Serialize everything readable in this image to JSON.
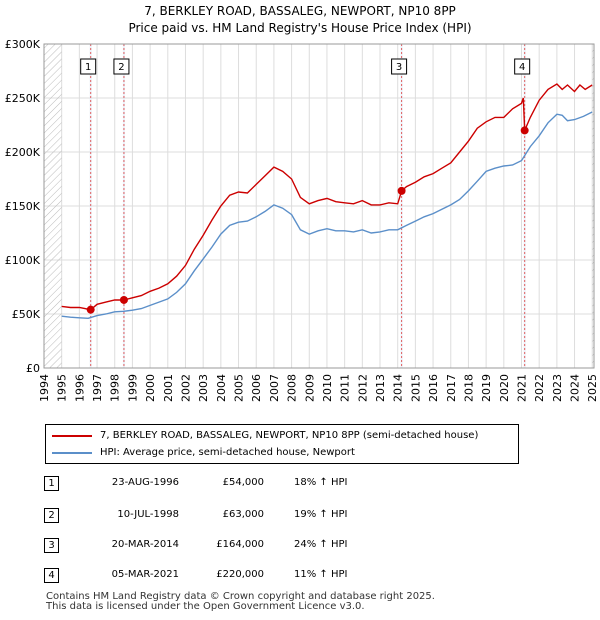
{
  "title_line1": "7, BERKLEY ROAD, BASSALEG, NEWPORT, NP10 8PP",
  "title_line2": "Price paid vs. HM Land Registry's House Price Index (HPI)",
  "chart_data": {
    "type": "line",
    "xlim": [
      1994.0,
      2025.1
    ],
    "ylim": [
      0,
      300000
    ],
    "y_ticks": [
      0,
      50000,
      100000,
      150000,
      200000,
      250000,
      300000
    ],
    "y_tick_labels": [
      "£0",
      "£50K",
      "£100K",
      "£150K",
      "£200K",
      "£250K",
      "£300K"
    ],
    "x_ticks": [
      1994,
      1995,
      1996,
      1997,
      1998,
      1999,
      2000,
      2001,
      2002,
      2003,
      2004,
      2005,
      2006,
      2007,
      2008,
      2009,
      2010,
      2011,
      2012,
      2013,
      2014,
      2015,
      2016,
      2017,
      2018,
      2019,
      2020,
      2021,
      2022,
      2023,
      2024,
      2025
    ],
    "hatch_ranges": [
      [
        1994.0,
        1995.0
      ],
      [
        2025.0,
        2025.1
      ]
    ],
    "colors": {
      "property": "#cc0000",
      "hpi": "#5b8fc9",
      "sale_line": "#e06060",
      "shade": "#dde6f4"
    },
    "series": [
      {
        "name": "7, BERKLEY ROAD, BASSALEG, NEWPORT, NP10 8PP (semi-detached house)",
        "x": [
          1995.0,
          1995.5,
          1996.0,
          1996.64,
          1997.0,
          1997.5,
          1998.0,
          1998.52,
          1999.0,
          1999.5,
          2000.0,
          2000.5,
          2001.0,
          2001.5,
          2002.0,
          2002.5,
          2003.0,
          2003.5,
          2004.0,
          2004.5,
          2005.0,
          2005.5,
          2006.0,
          2006.5,
          2007.0,
          2007.5,
          2008.0,
          2008.5,
          2009.0,
          2009.5,
          2010.0,
          2010.5,
          2011.0,
          2011.5,
          2012.0,
          2012.5,
          2013.0,
          2013.5,
          2014.0,
          2014.22,
          2014.5,
          2015.0,
          2015.5,
          2016.0,
          2016.5,
          2017.0,
          2017.5,
          2018.0,
          2018.5,
          2019.0,
          2019.5,
          2020.0,
          2020.5,
          2021.0,
          2021.1,
          2021.18,
          2021.5,
          2022.0,
          2022.5,
          2023.0,
          2023.3,
          2023.6,
          2024.0,
          2024.3,
          2024.6,
          2025.0
        ],
        "values": [
          57000,
          56000,
          56000,
          54000,
          59000,
          61000,
          63000,
          63000,
          65000,
          67000,
          71000,
          74000,
          78000,
          85000,
          95000,
          110000,
          123000,
          137000,
          150000,
          160000,
          163000,
          162000,
          170000,
          178000,
          186000,
          182000,
          175000,
          158000,
          152000,
          155000,
          157000,
          154000,
          153000,
          152000,
          155000,
          151000,
          151000,
          153000,
          152000,
          164000,
          168000,
          172000,
          177000,
          180000,
          185000,
          190000,
          200000,
          210000,
          222000,
          228000,
          232000,
          232000,
          240000,
          245000,
          250000,
          220000,
          232000,
          248000,
          258000,
          263000,
          258000,
          262000,
          256000,
          262000,
          258000,
          262000
        ]
      },
      {
        "name": "HPI: Average price, semi-detached house, Newport",
        "x": [
          1995.0,
          1995.5,
          1996.0,
          1996.5,
          1997.0,
          1997.5,
          1998.0,
          1998.5,
          1999.0,
          1999.5,
          2000.0,
          2000.5,
          2001.0,
          2001.5,
          2002.0,
          2002.5,
          2003.0,
          2003.5,
          2004.0,
          2004.5,
          2005.0,
          2005.5,
          2006.0,
          2006.5,
          2007.0,
          2007.5,
          2008.0,
          2008.5,
          2009.0,
          2009.5,
          2010.0,
          2010.5,
          2011.0,
          2011.5,
          2012.0,
          2012.5,
          2013.0,
          2013.5,
          2014.0,
          2014.5,
          2015.0,
          2015.5,
          2016.0,
          2016.5,
          2017.0,
          2017.5,
          2018.0,
          2018.5,
          2019.0,
          2019.5,
          2020.0,
          2020.5,
          2021.0,
          2021.5,
          2022.0,
          2022.5,
          2023.0,
          2023.3,
          2023.6,
          2024.0,
          2024.5,
          2025.0
        ],
        "values": [
          48000,
          47000,
          46500,
          46000,
          48500,
          50000,
          52000,
          52500,
          53500,
          55000,
          58000,
          61000,
          64000,
          70000,
          78000,
          90000,
          101000,
          112000,
          124000,
          132000,
          135000,
          136000,
          140000,
          145000,
          151000,
          148000,
          142000,
          128000,
          124000,
          127000,
          129000,
          127000,
          127000,
          126000,
          128000,
          125000,
          126000,
          128000,
          128000,
          132000,
          136000,
          140000,
          143000,
          147000,
          151000,
          156000,
          164000,
          173000,
          182000,
          185000,
          187000,
          188000,
          192000,
          205000,
          215000,
          227000,
          235000,
          234000,
          229000,
          230000,
          233000,
          237000
        ]
      }
    ],
    "sales": [
      {
        "label": "1",
        "x": 1996.64,
        "value": 54000
      },
      {
        "label": "2",
        "x": 1998.52,
        "value": 63000
      },
      {
        "label": "3",
        "x": 2014.22,
        "value": 164000
      },
      {
        "label": "4",
        "x": 2021.18,
        "value": 220000
      }
    ]
  },
  "legend": {
    "property_label": "7, BERKLEY ROAD, BASSALEG, NEWPORT, NP10 8PP (semi-detached house)",
    "hpi_label": "HPI: Average price, semi-detached house, Newport"
  },
  "sales_table": [
    {
      "num": "1",
      "date": "23-AUG-1996",
      "price": "£54,000",
      "hpi": "18% ↑ HPI"
    },
    {
      "num": "2",
      "date": "10-JUL-1998",
      "price": "£63,000",
      "hpi": "19% ↑ HPI"
    },
    {
      "num": "3",
      "date": "20-MAR-2014",
      "price": "£164,000",
      "hpi": "24% ↑ HPI"
    },
    {
      "num": "4",
      "date": "05-MAR-2021",
      "price": "£220,000",
      "hpi": "11% ↑ HPI"
    }
  ],
  "footer_line1": "Contains HM Land Registry data © Crown copyright and database right 2025.",
  "footer_line2": "This data is licensed under the Open Government Licence v3.0."
}
